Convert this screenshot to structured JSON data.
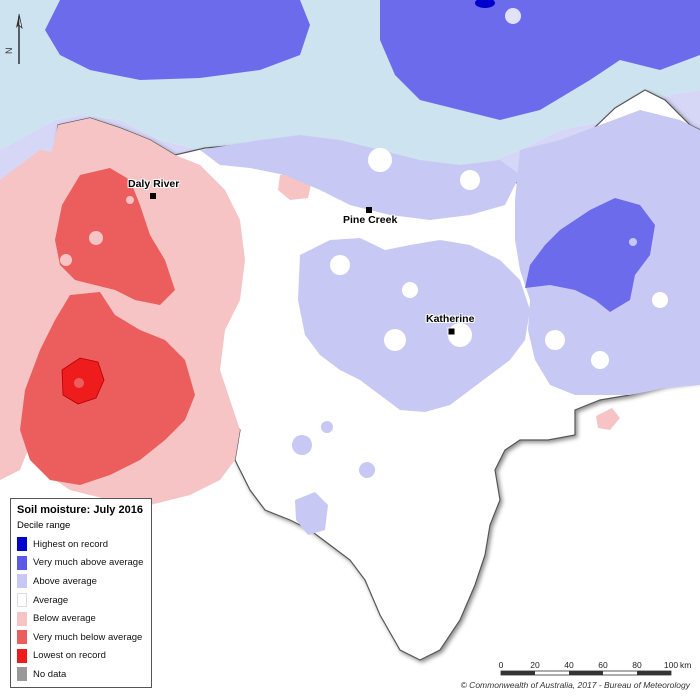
{
  "legend": {
    "title": "Soil moisture: July 2016",
    "subtitle": "Decile range",
    "items": [
      {
        "label": "Highest on record",
        "color": "#0000cc"
      },
      {
        "label": "Very much above average",
        "color": "#5a5ae8"
      },
      {
        "label": "Above average",
        "color": "#c8c8f4"
      },
      {
        "label": "Average",
        "color": "#ffffff"
      },
      {
        "label": "Below average",
        "color": "#f6c4c4"
      },
      {
        "label": "Very much below average",
        "color": "#ec5e5e"
      },
      {
        "label": "Lowest on record",
        "color": "#ee1c1c"
      },
      {
        "label": "No data",
        "color": "#999999"
      }
    ]
  },
  "towns": [
    {
      "name": "Daly River"
    },
    {
      "name": "Pine Creek"
    },
    {
      "name": "Katherine"
    }
  ],
  "scale_bar": {
    "ticks": [
      "0",
      "20",
      "40",
      "60",
      "80",
      "100"
    ],
    "unit": "km"
  },
  "north_arrow": {
    "label": "N",
    "icon": "north-arrow-icon"
  },
  "copyright": "© Commonwealth of Australia, 2017 - Bureau of Meteorology",
  "colors": {
    "ocean": "#cde4f0",
    "region_border": "#555555"
  }
}
